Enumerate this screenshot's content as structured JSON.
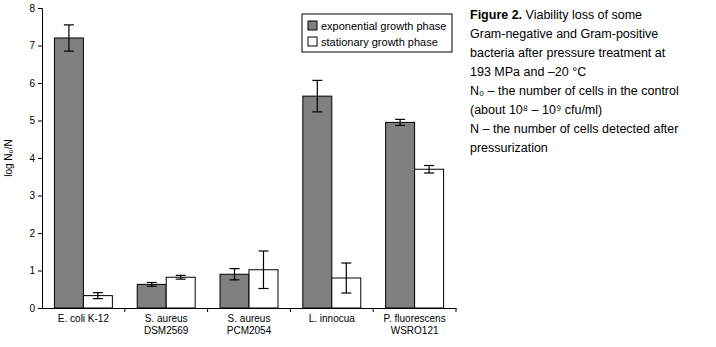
{
  "chart_data": {
    "type": "bar",
    "y_label": "log N₀/N",
    "categories": [
      "E. coli K-12",
      "S. aureus\nDSM2569",
      "S. aureus\nPCM2054",
      "L. innocua",
      "P. fluorescens\nWSRO121"
    ],
    "series": [
      {
        "name": "exponential growth phase",
        "color": "#808080",
        "values": [
          7.2,
          0.63,
          0.9,
          5.65,
          4.95
        ],
        "errors": [
          0.35,
          0.05,
          0.15,
          0.42,
          0.08
        ]
      },
      {
        "name": "stationary growth phase",
        "color": "#ffffff",
        "values": [
          0.33,
          0.82,
          1.02,
          0.8,
          3.7
        ],
        "errors": [
          0.08,
          0.05,
          0.5,
          0.4,
          0.1
        ]
      }
    ],
    "ylim": [
      0,
      8
    ],
    "yticks": [
      0,
      1,
      2,
      3,
      4,
      5,
      6,
      7,
      8
    ],
    "legend": "top-right",
    "grid": false,
    "caption_label": "Figure 2.",
    "caption_lines": [
      "Viability loss of some",
      "Gram-negative and Gram-positive",
      "bacteria after pressure treatment at",
      "193 MPa and –20 °C"
    ],
    "notes": [
      "N₀ – the number of cells in the control",
      "(about 10⁸ – 10⁹ cfu/ml)",
      "N – the number of cells detected after",
      "pressurization"
    ]
  }
}
